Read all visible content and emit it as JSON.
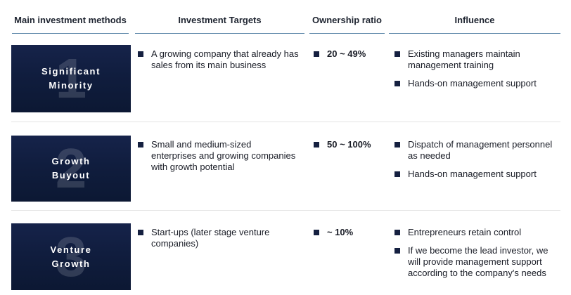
{
  "colors": {
    "badge_navy": "#101d3e",
    "header_underline_blue": "#4e7ca2",
    "bullet_navy": "#152040",
    "row_separator_gray": "#e4e4e4",
    "ghost_number": "rgba(255,255,255,0.15)"
  },
  "table": {
    "columns": [
      {
        "label": "Main investment methods"
      },
      {
        "label": "Investment Targets"
      },
      {
        "label": "Ownership ratio"
      },
      {
        "label": "Influence"
      }
    ],
    "rows": [
      {
        "number": "1",
        "method_lines": [
          "Significant",
          "Minority"
        ],
        "targets": [
          "A growing company that already has sales from its main business"
        ],
        "ownership": "20 ~ 49%",
        "influence": [
          "Existing managers maintain management training",
          "Hands-on management support"
        ]
      },
      {
        "number": "2",
        "method_lines": [
          "Growth",
          "Buyout"
        ],
        "targets": [
          "Small and medium-sized enterprises and growing companies with growth potential"
        ],
        "ownership": "50 ~ 100%",
        "influence": [
          "Dispatch of management personnel as needed",
          "Hands-on management support"
        ]
      },
      {
        "number": "3",
        "method_lines": [
          "Venture",
          "Growth"
        ],
        "targets": [
          "Start-ups (later stage venture companies)"
        ],
        "ownership": "~ 10%",
        "influence": [
          "Entrepreneurs retain control",
          "If we become the lead investor, we will provide management support according to the company's needs"
        ]
      }
    ]
  }
}
